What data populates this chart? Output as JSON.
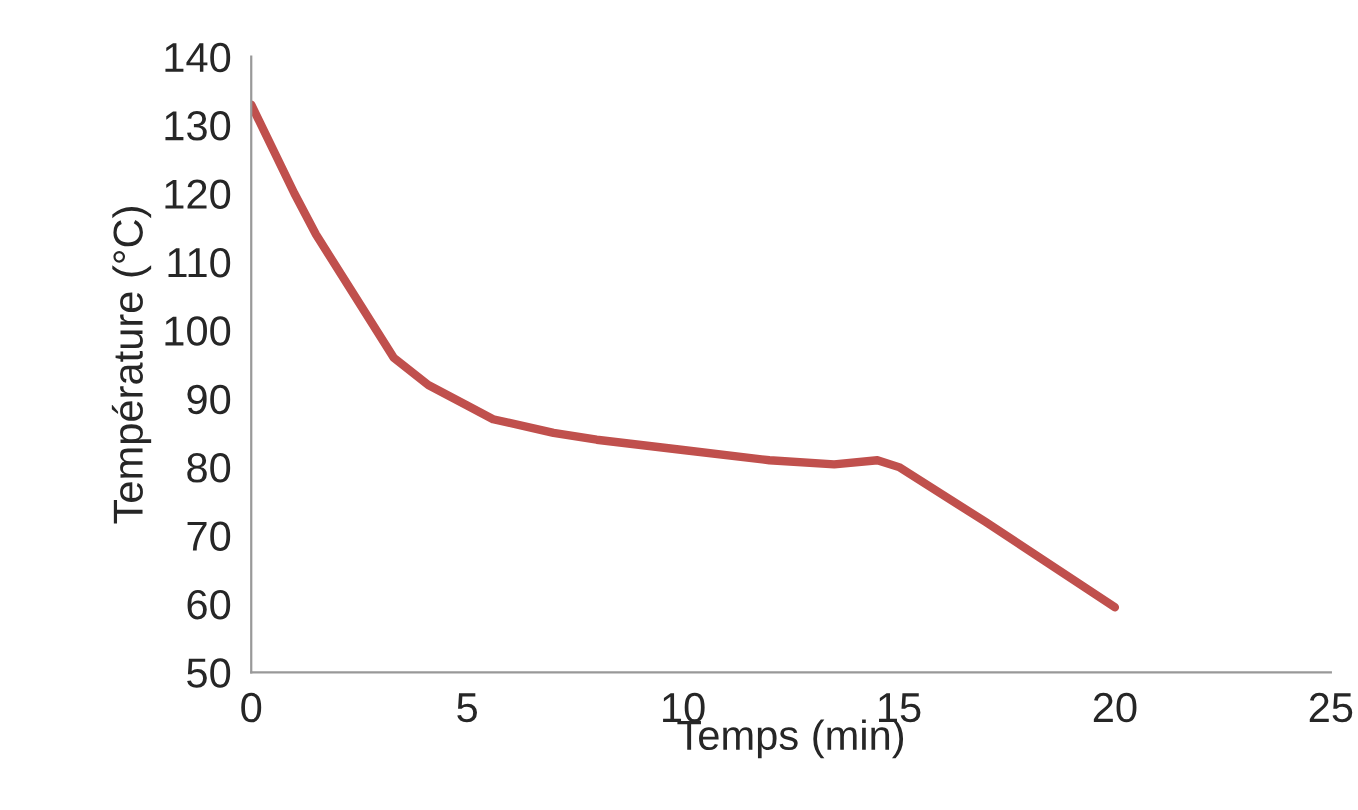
{
  "chart_data": {
    "type": "line",
    "xlabel": "Temps (min)",
    "ylabel": "Température (°C)",
    "x": [
      0,
      1,
      1.5,
      2.3,
      3.3,
      4.1,
      5,
      5.6,
      7,
      8,
      10,
      12,
      13.5,
      14.5,
      15,
      17,
      20
    ],
    "series": [
      {
        "color": "#c0504d",
        "values": [
          133,
          120,
          114,
          106,
          96,
          92,
          89,
          87,
          85,
          84,
          82.5,
          81,
          80.4,
          81,
          80,
          72,
          59.5
        ]
      }
    ],
    "xlim": [
      0,
      25
    ],
    "xticks": [
      0,
      5,
      10,
      15,
      20,
      25
    ],
    "ylim": [
      50,
      140
    ],
    "yticks": [
      50,
      60,
      70,
      80,
      90,
      100,
      110,
      120,
      130,
      140
    ],
    "grid": false,
    "legend": false
  }
}
